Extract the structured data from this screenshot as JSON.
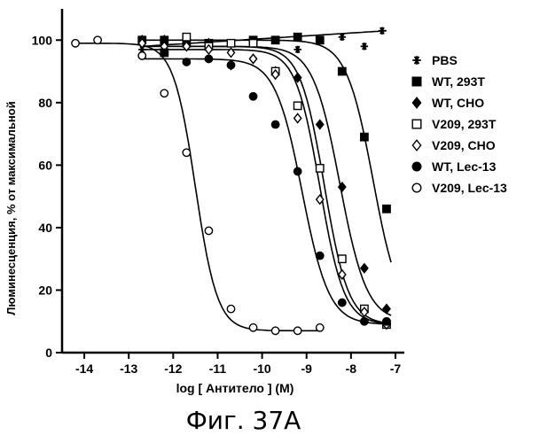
{
  "caption": "Фиг. 37А",
  "chart_data": {
    "type": "scatter",
    "xlabel": "log [ Антитело ] (M)",
    "ylabel": "Люминесценция, % от максимальной",
    "xlim": [
      -14.5,
      -6.8
    ],
    "ylim": [
      0,
      110
    ],
    "xticks": [
      -14,
      -13,
      -12,
      -11,
      -10,
      -9,
      -8,
      -7
    ],
    "yticks": [
      0,
      20,
      40,
      60,
      80,
      100
    ],
    "grid": false,
    "legend_position": "right",
    "series": [
      {
        "name": "PBS",
        "marker": "asterisk",
        "x": [
          -12.7,
          -12.2,
          -11.7,
          -11.2,
          -10.7,
          -10.2,
          -9.7,
          -9.2,
          -8.7,
          -8.2,
          -7.7,
          -7.3
        ],
        "y": [
          97,
          100,
          98,
          98,
          99,
          99,
          100,
          97,
          100,
          101,
          98,
          103
        ],
        "fit": {
          "kind": "linear",
          "x0": -12.7,
          "x1": -7.2,
          "y0": 98,
          "y1": 103
        }
      },
      {
        "name": "WT, 293T",
        "marker": "filled-square",
        "x": [
          -12.7,
          -12.2,
          -11.7,
          -11.2,
          -10.2,
          -9.7,
          -9.2,
          -8.7,
          -8.2,
          -7.7,
          -7.2
        ],
        "y": [
          100,
          100,
          99,
          99,
          100,
          100,
          101,
          100,
          90,
          69,
          46
        ],
        "fit": {
          "kind": "sigmoid",
          "top": 100,
          "bottom": 10,
          "ec50": -7.5,
          "hill": 0.9,
          "x0": -12.7,
          "x1": -7.1
        }
      },
      {
        "name": "WT, CHO",
        "marker": "filled-diamond",
        "x": [
          -12.7,
          -12.2,
          -11.7,
          -11.2,
          -10.7,
          -10.2,
          -9.7,
          -9.2,
          -8.7,
          -8.2,
          -7.7,
          -7.2
        ],
        "y": [
          100,
          100,
          100,
          99,
          92,
          94,
          90,
          88,
          73,
          53,
          27,
          14
        ],
        "fit": {
          "kind": "sigmoid",
          "top": 98,
          "bottom": 10,
          "ec50": -8.25,
          "hill": 0.9,
          "x0": -12.7,
          "x1": -7.1
        }
      },
      {
        "name": "V209, 293T",
        "marker": "open-square",
        "x": [
          -12.2,
          -11.7,
          -11.2,
          -10.7,
          -10.2,
          -9.7,
          -9.2,
          -8.7,
          -8.2,
          -7.7,
          -7.2
        ],
        "y": [
          96,
          101,
          98,
          99,
          99,
          90,
          79,
          59,
          30,
          14,
          9
        ],
        "fit": {
          "kind": "sigmoid",
          "top": 98,
          "bottom": 9,
          "ec50": -8.6,
          "hill": 1.0,
          "x0": -12.7,
          "x1": -7.1
        }
      },
      {
        "name": "V209, CHO",
        "marker": "open-diamond",
        "x": [
          -12.7,
          -12.2,
          -11.7,
          -11.2,
          -10.7,
          -10.2,
          -9.7,
          -9.2,
          -8.7,
          -8.2,
          -7.7,
          -7.2
        ],
        "y": [
          99,
          98,
          98,
          97,
          96,
          94,
          89,
          75,
          49,
          25,
          13,
          9
        ],
        "fit": {
          "kind": "sigmoid",
          "top": 97,
          "bottom": 9,
          "ec50": -8.7,
          "hill": 1.0,
          "x0": -12.7,
          "x1": -7.1
        }
      },
      {
        "name": "WT, Lec-13",
        "marker": "filled-circle",
        "x": [
          -12.7,
          -12.2,
          -11.7,
          -11.2,
          -10.7,
          -10.2,
          -9.7,
          -9.2,
          -8.7,
          -8.2,
          -7.7,
          -7.2
        ],
        "y": [
          95,
          96,
          93,
          94,
          92,
          82,
          73,
          58,
          31,
          16,
          10,
          10
        ],
        "fit": {
          "kind": "sigmoid",
          "top": 94,
          "bottom": 9,
          "ec50": -9.1,
          "hill": 0.9,
          "x0": -12.7,
          "x1": -7.1
        }
      },
      {
        "name": "V209, Lec-13",
        "marker": "open-circle",
        "x": [
          -14.2,
          -13.7,
          -12.7,
          -12.2,
          -11.7,
          -11.2,
          -10.7,
          -10.2,
          -9.7,
          -9.2,
          -8.7
        ],
        "y": [
          99,
          100,
          95,
          83,
          64,
          39,
          14,
          8,
          7,
          7,
          8
        ],
        "fit": {
          "kind": "sigmoid",
          "top": 99,
          "bottom": 7,
          "ec50": -11.5,
          "hill": 1.1,
          "x0": -14.2,
          "x1": -8.7
        }
      }
    ]
  }
}
